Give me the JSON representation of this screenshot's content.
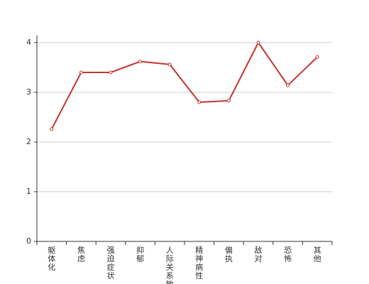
{
  "chart_data": {
    "type": "line",
    "categories": [
      "躯体化",
      "焦虑",
      "强迫症状",
      "抑郁",
      "人际关系敏感",
      "精神病性",
      "偏执",
      "敌对",
      "恐怖",
      "其他"
    ],
    "values": [
      2.26,
      3.4,
      3.4,
      3.62,
      3.56,
      2.8,
      2.83,
      4.0,
      3.14,
      3.71
    ],
    "color": "#c23531",
    "ylim": [
      0,
      4
    ],
    "yticks": [
      0,
      1,
      2,
      3,
      4
    ],
    "grid": true
  }
}
